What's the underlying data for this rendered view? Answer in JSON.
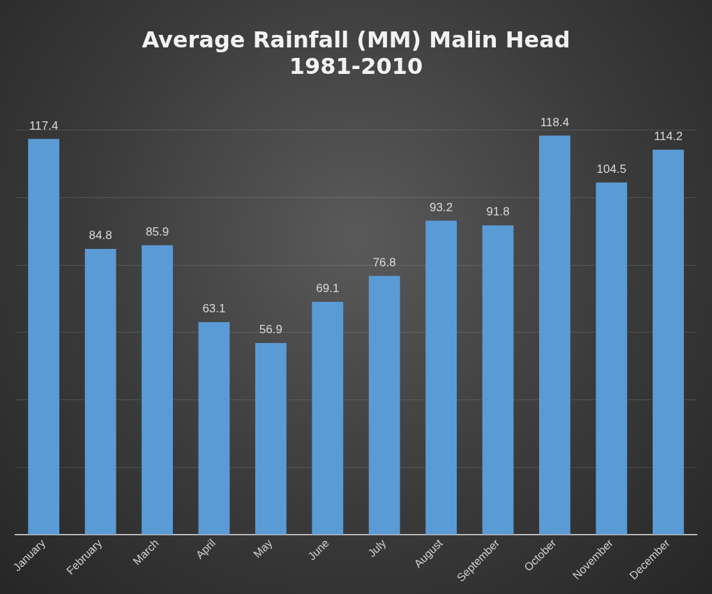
{
  "chart_data": {
    "type": "bar",
    "title": "Average Rainfall (MM) Malin Head\n1981-2010",
    "categories": [
      "January",
      "February",
      "March",
      "April",
      "May",
      "June",
      "July",
      "August",
      "September",
      "October",
      "November",
      "December"
    ],
    "values": [
      117.4,
      84.8,
      85.9,
      63.1,
      56.9,
      69.1,
      76.8,
      93.2,
      91.8,
      118.4,
      104.5,
      114.2
    ],
    "color": "#5b9bd5",
    "ylim": [
      0,
      120
    ],
    "yticks": [
      {
        "value": 0,
        "label": null
      },
      {
        "value": 20,
        "label": null
      },
      {
        "value": 40,
        "label": null
      },
      {
        "value": 60,
        "label": null
      },
      {
        "value": 80,
        "label": null
      },
      {
        "value": 100,
        "label": null
      },
      {
        "value": 120,
        "label": null
      }
    ],
    "grid": "y",
    "tick_labels": "x",
    "data_labels": true
  }
}
